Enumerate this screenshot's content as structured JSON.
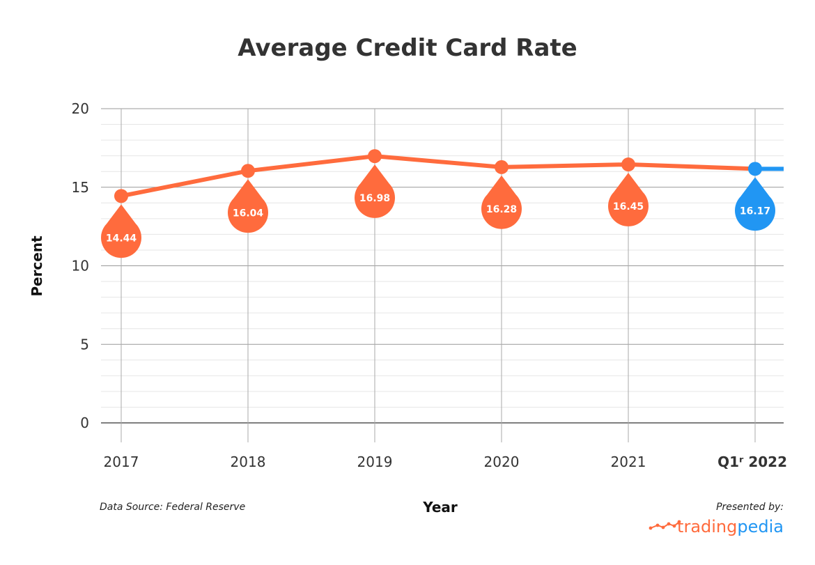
{
  "chart_data": {
    "type": "line",
    "title": "Average Credit Card Rate",
    "xlabel": "Year",
    "ylabel": "Percent",
    "categories": [
      "2017",
      "2018",
      "2019",
      "2020",
      "2021",
      "Q1ʳ 2022"
    ],
    "values": [
      14.44,
      16.04,
      16.98,
      16.28,
      16.45,
      16.17
    ],
    "data_labels": [
      "14.44",
      "16.04",
      "16.98",
      "16.28",
      "16.45",
      "16.17"
    ],
    "ylim": [
      0,
      20
    ],
    "yticks": [
      "0",
      "5",
      "10",
      "15",
      "20"
    ],
    "grid": true,
    "highlight_index": 5
  },
  "footer": {
    "source": "Data Source: Federal Reserve",
    "presented_by": "Presented by:",
    "brand_part1": "trading",
    "brand_part2": "pedia"
  },
  "colors": {
    "series": "#ff6b3d",
    "highlight": "#2196f3",
    "brand_orange": "#ff6b3d",
    "brand_blue": "#2196f3"
  },
  "icons": {
    "brand_logo": "line-chart-logo-icon"
  }
}
